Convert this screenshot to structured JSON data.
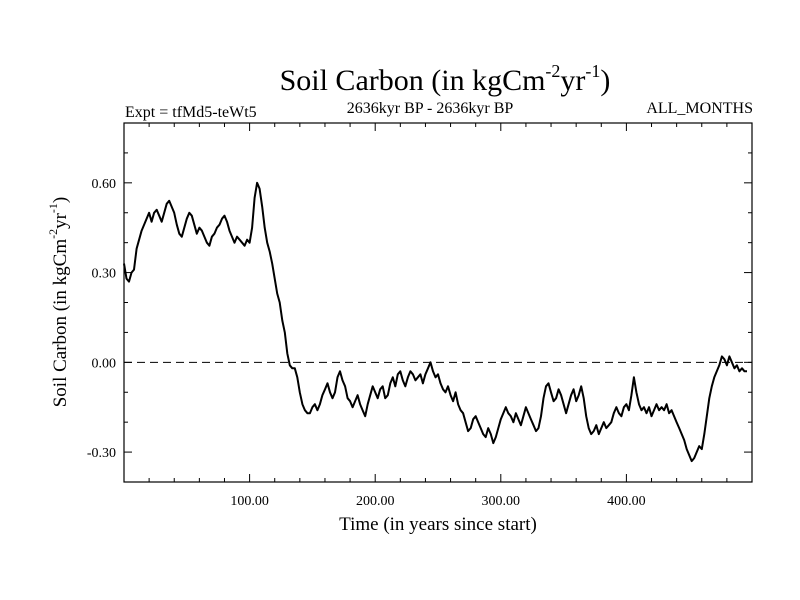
{
  "chart_data": {
    "type": "line",
    "title": {
      "main": "Soil Carbon (in kgCm",
      "sup1": "-2",
      "mid": "yr",
      "sup2": "-1",
      "end": ")"
    },
    "subtitle_left": "Expt = tfMd5-teWt5",
    "subtitle_center": "2636kyr BP - 2636kyr BP",
    "subtitle_right": "ALL_MONTHS",
    "xlabel": "Time (in years since start)",
    "ylabel": {
      "main": "Soil Carbon (in kgCm",
      "sup1": "-2",
      "mid": "yr",
      "sup2": "-1",
      "end": ")"
    },
    "xlim": [
      0,
      500
    ],
    "ylim": [
      -0.4,
      0.8
    ],
    "x_ticks": [
      100,
      200,
      300,
      400
    ],
    "x_tick_labels": [
      "100.00",
      "200.00",
      "300.00",
      "400.00"
    ],
    "y_ticks": [
      -0.3,
      0.0,
      0.3,
      0.6
    ],
    "y_tick_labels": [
      "-0.30",
      "0.00",
      "0.30",
      "0.60"
    ],
    "reference_line": {
      "y": 0.0,
      "style": "dashed"
    },
    "series": [
      {
        "color": "#000000",
        "points": [
          [
            0,
            0.33
          ],
          [
            2,
            0.28
          ],
          [
            4,
            0.27
          ],
          [
            6,
            0.3
          ],
          [
            8,
            0.31
          ],
          [
            10,
            0.38
          ],
          [
            12,
            0.41
          ],
          [
            14,
            0.44
          ],
          [
            16,
            0.46
          ],
          [
            18,
            0.48
          ],
          [
            20,
            0.5
          ],
          [
            22,
            0.47
          ],
          [
            24,
            0.5
          ],
          [
            26,
            0.51
          ],
          [
            28,
            0.49
          ],
          [
            30,
            0.47
          ],
          [
            32,
            0.5
          ],
          [
            34,
            0.53
          ],
          [
            36,
            0.54
          ],
          [
            38,
            0.52
          ],
          [
            40,
            0.5
          ],
          [
            42,
            0.46
          ],
          [
            44,
            0.43
          ],
          [
            46,
            0.42
          ],
          [
            48,
            0.45
          ],
          [
            50,
            0.48
          ],
          [
            52,
            0.5
          ],
          [
            54,
            0.49
          ],
          [
            56,
            0.46
          ],
          [
            58,
            0.43
          ],
          [
            60,
            0.45
          ],
          [
            62,
            0.44
          ],
          [
            64,
            0.42
          ],
          [
            66,
            0.4
          ],
          [
            68,
            0.39
          ],
          [
            70,
            0.42
          ],
          [
            72,
            0.43
          ],
          [
            74,
            0.45
          ],
          [
            76,
            0.46
          ],
          [
            78,
            0.48
          ],
          [
            80,
            0.49
          ],
          [
            82,
            0.47
          ],
          [
            84,
            0.44
          ],
          [
            86,
            0.42
          ],
          [
            88,
            0.4
          ],
          [
            90,
            0.42
          ],
          [
            92,
            0.41
          ],
          [
            94,
            0.4
          ],
          [
            96,
            0.39
          ],
          [
            98,
            0.41
          ],
          [
            100,
            0.4
          ],
          [
            102,
            0.45
          ],
          [
            104,
            0.55
          ],
          [
            106,
            0.6
          ],
          [
            108,
            0.58
          ],
          [
            110,
            0.52
          ],
          [
            112,
            0.45
          ],
          [
            114,
            0.4
          ],
          [
            116,
            0.37
          ],
          [
            118,
            0.33
          ],
          [
            120,
            0.28
          ],
          [
            122,
            0.23
          ],
          [
            124,
            0.2
          ],
          [
            126,
            0.14
          ],
          [
            128,
            0.1
          ],
          [
            130,
            0.03
          ],
          [
            132,
            -0.01
          ],
          [
            134,
            -0.02
          ],
          [
            136,
            -0.02
          ],
          [
            138,
            -0.05
          ],
          [
            140,
            -0.1
          ],
          [
            142,
            -0.14
          ],
          [
            144,
            -0.16
          ],
          [
            146,
            -0.17
          ],
          [
            148,
            -0.17
          ],
          [
            150,
            -0.15
          ],
          [
            152,
            -0.14
          ],
          [
            154,
            -0.16
          ],
          [
            156,
            -0.14
          ],
          [
            158,
            -0.11
          ],
          [
            160,
            -0.09
          ],
          [
            162,
            -0.07
          ],
          [
            164,
            -0.1
          ],
          [
            166,
            -0.12
          ],
          [
            168,
            -0.1
          ],
          [
            170,
            -0.05
          ],
          [
            172,
            -0.03
          ],
          [
            174,
            -0.06
          ],
          [
            176,
            -0.08
          ],
          [
            178,
            -0.12
          ],
          [
            180,
            -0.13
          ],
          [
            182,
            -0.15
          ],
          [
            184,
            -0.13
          ],
          [
            186,
            -0.11
          ],
          [
            188,
            -0.14
          ],
          [
            190,
            -0.16
          ],
          [
            192,
            -0.18
          ],
          [
            194,
            -0.14
          ],
          [
            196,
            -0.11
          ],
          [
            198,
            -0.08
          ],
          [
            200,
            -0.1
          ],
          [
            202,
            -0.12
          ],
          [
            204,
            -0.09
          ],
          [
            206,
            -0.08
          ],
          [
            208,
            -0.12
          ],
          [
            210,
            -0.11
          ],
          [
            212,
            -0.07
          ],
          [
            214,
            -0.05
          ],
          [
            216,
            -0.08
          ],
          [
            218,
            -0.04
          ],
          [
            220,
            -0.03
          ],
          [
            222,
            -0.06
          ],
          [
            224,
            -0.08
          ],
          [
            226,
            -0.05
          ],
          [
            228,
            -0.03
          ],
          [
            230,
            -0.04
          ],
          [
            232,
            -0.06
          ],
          [
            234,
            -0.05
          ],
          [
            236,
            -0.04
          ],
          [
            238,
            -0.07
          ],
          [
            240,
            -0.04
          ],
          [
            242,
            -0.02
          ],
          [
            244,
            0.0
          ],
          [
            246,
            -0.03
          ],
          [
            248,
            -0.05
          ],
          [
            250,
            -0.04
          ],
          [
            252,
            -0.07
          ],
          [
            254,
            -0.09
          ],
          [
            256,
            -0.1
          ],
          [
            258,
            -0.08
          ],
          [
            260,
            -0.11
          ],
          [
            262,
            -0.13
          ],
          [
            264,
            -0.1
          ],
          [
            266,
            -0.14
          ],
          [
            268,
            -0.16
          ],
          [
            270,
            -0.17
          ],
          [
            272,
            -0.2
          ],
          [
            274,
            -0.23
          ],
          [
            276,
            -0.22
          ],
          [
            278,
            -0.19
          ],
          [
            280,
            -0.18
          ],
          [
            282,
            -0.2
          ],
          [
            284,
            -0.22
          ],
          [
            286,
            -0.24
          ],
          [
            288,
            -0.25
          ],
          [
            290,
            -0.22
          ],
          [
            292,
            -0.24
          ],
          [
            294,
            -0.27
          ],
          [
            296,
            -0.25
          ],
          [
            298,
            -0.22
          ],
          [
            300,
            -0.19
          ],
          [
            302,
            -0.17
          ],
          [
            304,
            -0.15
          ],
          [
            306,
            -0.17
          ],
          [
            308,
            -0.18
          ],
          [
            310,
            -0.2
          ],
          [
            312,
            -0.17
          ],
          [
            314,
            -0.19
          ],
          [
            316,
            -0.21
          ],
          [
            318,
            -0.18
          ],
          [
            320,
            -0.15
          ],
          [
            322,
            -0.17
          ],
          [
            324,
            -0.19
          ],
          [
            326,
            -0.21
          ],
          [
            328,
            -0.23
          ],
          [
            330,
            -0.22
          ],
          [
            332,
            -0.18
          ],
          [
            334,
            -0.12
          ],
          [
            336,
            -0.08
          ],
          [
            338,
            -0.07
          ],
          [
            340,
            -0.1
          ],
          [
            342,
            -0.13
          ],
          [
            344,
            -0.12
          ],
          [
            346,
            -0.09
          ],
          [
            348,
            -0.11
          ],
          [
            350,
            -0.14
          ],
          [
            352,
            -0.17
          ],
          [
            354,
            -0.14
          ],
          [
            356,
            -0.11
          ],
          [
            358,
            -0.09
          ],
          [
            360,
            -0.13
          ],
          [
            362,
            -0.11
          ],
          [
            364,
            -0.08
          ],
          [
            366,
            -0.12
          ],
          [
            368,
            -0.18
          ],
          [
            370,
            -0.22
          ],
          [
            372,
            -0.24
          ],
          [
            374,
            -0.23
          ],
          [
            376,
            -0.21
          ],
          [
            378,
            -0.24
          ],
          [
            380,
            -0.22
          ],
          [
            382,
            -0.2
          ],
          [
            384,
            -0.22
          ],
          [
            386,
            -0.21
          ],
          [
            388,
            -0.2
          ],
          [
            390,
            -0.17
          ],
          [
            392,
            -0.15
          ],
          [
            394,
            -0.17
          ],
          [
            396,
            -0.18
          ],
          [
            398,
            -0.15
          ],
          [
            400,
            -0.14
          ],
          [
            402,
            -0.16
          ],
          [
            404,
            -0.11
          ],
          [
            406,
            -0.05
          ],
          [
            408,
            -0.1
          ],
          [
            410,
            -0.14
          ],
          [
            412,
            -0.16
          ],
          [
            414,
            -0.15
          ],
          [
            416,
            -0.17
          ],
          [
            418,
            -0.15
          ],
          [
            420,
            -0.18
          ],
          [
            422,
            -0.16
          ],
          [
            424,
            -0.14
          ],
          [
            426,
            -0.16
          ],
          [
            428,
            -0.15
          ],
          [
            430,
            -0.16
          ],
          [
            432,
            -0.14
          ],
          [
            434,
            -0.17
          ],
          [
            436,
            -0.16
          ],
          [
            438,
            -0.18
          ],
          [
            440,
            -0.2
          ],
          [
            442,
            -0.22
          ],
          [
            444,
            -0.24
          ],
          [
            446,
            -0.26
          ],
          [
            448,
            -0.29
          ],
          [
            450,
            -0.31
          ],
          [
            452,
            -0.33
          ],
          [
            454,
            -0.32
          ],
          [
            456,
            -0.3
          ],
          [
            458,
            -0.28
          ],
          [
            460,
            -0.29
          ],
          [
            462,
            -0.24
          ],
          [
            464,
            -0.18
          ],
          [
            466,
            -0.12
          ],
          [
            468,
            -0.08
          ],
          [
            470,
            -0.05
          ],
          [
            472,
            -0.03
          ],
          [
            474,
            -0.01
          ],
          [
            476,
            0.02
          ],
          [
            478,
            0.01
          ],
          [
            480,
            -0.01
          ],
          [
            482,
            0.02
          ],
          [
            484,
            0.0
          ],
          [
            486,
            -0.02
          ],
          [
            488,
            -0.01
          ],
          [
            490,
            -0.03
          ],
          [
            492,
            -0.02
          ],
          [
            494,
            -0.03
          ],
          [
            496,
            -0.03
          ]
        ]
      }
    ]
  }
}
